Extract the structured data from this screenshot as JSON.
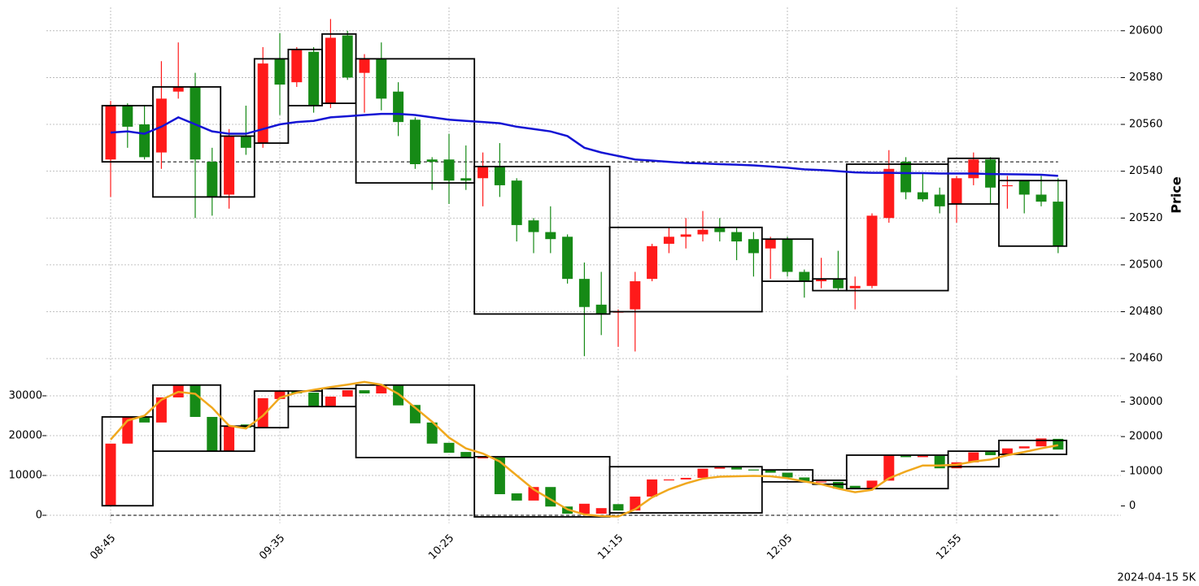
{
  "chart_data": [
    {
      "type": "candlestick",
      "y_label": "Price",
      "categories": [
        "08:45",
        null,
        null,
        null,
        null,
        null,
        null,
        null,
        null,
        null,
        "09:35",
        null,
        null,
        null,
        null,
        null,
        null,
        null,
        null,
        null,
        "10:25",
        null,
        null,
        null,
        null,
        null,
        null,
        null,
        null,
        null,
        "11:15",
        null,
        null,
        null,
        null,
        null,
        null,
        null,
        null,
        null,
        "12:05",
        null,
        null,
        null,
        null,
        null,
        null,
        null,
        null,
        null,
        "12:55",
        null,
        null,
        null,
        null,
        null,
        null
      ],
      "open": [
        20545,
        20568,
        20560,
        20548,
        20574,
        20576,
        20544,
        20530,
        20555,
        20552,
        20588,
        20578,
        20591,
        20569,
        20598,
        20582,
        20588,
        20574,
        20562,
        20545,
        20545,
        20537,
        20537,
        20542,
        20536,
        20519,
        20514,
        20512,
        20494,
        20483,
        20480,
        20481,
        20494,
        20509,
        20512,
        20513,
        20516,
        20514,
        20511,
        20507,
        20511,
        20497,
        20493,
        20494,
        20490,
        20491,
        20520,
        20544,
        20531,
        20530,
        20526,
        20537,
        20545,
        20534,
        20536,
        20530,
        20527
      ],
      "high": [
        20570,
        20569,
        20568,
        20587,
        20595,
        20582,
        20550,
        20558,
        20568,
        20593,
        20599,
        20593,
        20593,
        20605,
        20600,
        20590,
        20595,
        20578,
        20563,
        20546,
        20556,
        20551,
        20548,
        20552,
        20537,
        20520,
        20525,
        20513,
        20501,
        20497,
        20481,
        20497,
        20509,
        20516,
        20520,
        20523,
        20520,
        20516,
        20514,
        20512,
        20512,
        20498,
        20503,
        20506,
        20495,
        20522,
        20549,
        20546,
        20539,
        20533,
        20538,
        20548,
        20546,
        20538,
        20536,
        20538,
        20537
      ],
      "low": [
        20529,
        20550,
        20545,
        20541,
        20571,
        20520,
        20521,
        20524,
        20547,
        20550,
        20564,
        20576,
        20565,
        20567,
        20579,
        20565,
        20566,
        20555,
        20541,
        20532,
        20526,
        20532,
        20525,
        20529,
        20510,
        20505,
        20505,
        20492,
        20461,
        20470,
        20465,
        20463,
        20493,
        20505,
        20507,
        20510,
        20510,
        20502,
        20495,
        20494,
        20495,
        20486,
        20490,
        20489,
        20481,
        20490,
        20518,
        20528,
        20527,
        20522,
        20518,
        20534,
        20526,
        20524,
        20522,
        20525,
        20505
      ],
      "close": [
        20568,
        20559,
        20546,
        20571,
        20576,
        20545,
        20529,
        20555,
        20550,
        20586,
        20577,
        20592,
        20568,
        20597,
        20580,
        20588,
        20571,
        20561,
        20543,
        20544,
        20536,
        20536,
        20542,
        20534,
        20517,
        20514,
        20511,
        20494,
        20482,
        20479,
        20480,
        20493,
        20508,
        20512,
        20513,
        20515,
        20514,
        20510,
        20505,
        20511,
        20497,
        20493,
        20494,
        20490,
        20491,
        20521,
        20541,
        20531,
        20528,
        20525,
        20537,
        20545,
        20533,
        20534,
        20530,
        20527,
        20508
      ],
      "up_color": "#ff1a1a",
      "down_color": "#168a16",
      "line": {
        "color": "#1414d4",
        "values": [
          20556.5,
          20557,
          20556,
          20559,
          20563,
          20560,
          20557,
          20556,
          20556,
          20558,
          20560,
          20561,
          20561.5,
          20563,
          20563.5,
          20564,
          20564.5,
          20564.5,
          20564,
          20563,
          20562,
          20561.5,
          20561,
          20560.5,
          20559,
          20558,
          20557,
          20555,
          20550,
          20548,
          20546.5,
          20545,
          20544.5,
          20544,
          20543.5,
          20543.3,
          20543,
          20542.8,
          20542.5,
          20542,
          20541.5,
          20540.8,
          20540.5,
          20540,
          20539.5,
          20539.3,
          20539.3,
          20539.2,
          20539.2,
          20539,
          20539,
          20539,
          20538.8,
          20538.7,
          20538.6,
          20538.5,
          20538
        ]
      },
      "hline": 20544,
      "boxes": [
        {
          "start": 0,
          "end": 2,
          "high": 20568,
          "low": 20544
        },
        {
          "start": 3,
          "end": 6,
          "high": 20576,
          "low": 20529
        },
        {
          "start": 7,
          "end": 8,
          "high": 20555,
          "low": 20529
        },
        {
          "start": 9,
          "end": 10,
          "high": 20588,
          "low": 20552
        },
        {
          "start": 11,
          "end": 12,
          "high": 20592,
          "low": 20568
        },
        {
          "start": 13,
          "end": 14,
          "high": 20598.6,
          "low": 20569
        },
        {
          "start": 15,
          "end": 21,
          "high": 20588,
          "low": 20535
        },
        {
          "start": 22,
          "end": 29,
          "high": 20542,
          "low": 20479
        },
        {
          "start": 30,
          "end": 38,
          "high": 20516,
          "low": 20480
        },
        {
          "start": 39,
          "end": 41,
          "high": 20511,
          "low": 20493
        },
        {
          "start": 42,
          "end": 43,
          "high": 20494,
          "low": 20489
        },
        {
          "start": 44,
          "end": 49,
          "high": 20543,
          "low": 20489
        },
        {
          "start": 50,
          "end": 52,
          "high": 20545.5,
          "low": 20526
        },
        {
          "start": 53,
          "end": 56,
          "high": 20536,
          "low": 20508
        }
      ],
      "ylim": [
        20455,
        20610
      ],
      "yticks": [
        20460,
        20480,
        20500,
        20520,
        20540,
        20560,
        20580,
        20600
      ],
      "grid": true
    },
    {
      "type": "candlestick",
      "footer": "2024-04-15 5K",
      "open": [
        2400,
        18000,
        24700,
        23300,
        29600,
        32800,
        24700,
        16100,
        22800,
        22000,
        29200,
        31200,
        30800,
        27300,
        29800,
        31400,
        30600,
        32700,
        27700,
        23300,
        18200,
        15900,
        14300,
        14500,
        5500,
        3700,
        7100,
        2200,
        400,
        400,
        2800,
        1200,
        4700,
        8800,
        9000,
        9400,
        11700,
        12100,
        11500,
        11300,
        10700,
        9500,
        8300,
        8400,
        7400,
        6600,
        8700,
        15000,
        14600,
        14900,
        11800,
        13300,
        15900,
        15200,
        16800,
        17300,
        19200
      ],
      "close": [
        18000,
        24700,
        23300,
        29600,
        32700,
        24700,
        16100,
        22400,
        22000,
        29400,
        31200,
        30600,
        27300,
        29800,
        31400,
        30600,
        32700,
        27600,
        23100,
        18000,
        15700,
        14500,
        14700,
        5300,
        3700,
        7100,
        2200,
        400,
        2900,
        1800,
        1200,
        4700,
        9000,
        9000,
        9400,
        11700,
        12100,
        11500,
        11300,
        10700,
        9500,
        8400,
        8500,
        6700,
        6600,
        8700,
        15000,
        14600,
        14900,
        11800,
        13300,
        15800,
        15100,
        16800,
        17300,
        19300,
        16500
      ],
      "up_color": "#ff1a1a",
      "down_color": "#168a16",
      "line": {
        "color": "#f0a81e",
        "values": [
          19000,
          23800,
          25000,
          29000,
          31000,
          30500,
          27000,
          22500,
          21800,
          25000,
          29500,
          30800,
          31500,
          32200,
          32800,
          33500,
          32800,
          30500,
          27000,
          23500,
          19500,
          16800,
          15500,
          13500,
          10000,
          6500,
          4000,
          1500,
          200,
          -200,
          -300,
          1500,
          4500,
          6500,
          8000,
          9200,
          9700,
          9800,
          9900,
          9800,
          9300,
          8500,
          7800,
          6700,
          5800,
          6400,
          9300,
          11000,
          12500,
          12500,
          12700,
          13500,
          14000,
          15100,
          15900,
          16800,
          17600
        ]
      },
      "hline": 0,
      "boxes": [
        {
          "start": 0,
          "end": 2,
          "high": 24700,
          "low": 2400
        },
        {
          "start": 3,
          "end": 6,
          "high": 32700,
          "low": 16100
        },
        {
          "start": 7,
          "end": 8,
          "high": 22400,
          "low": 16100
        },
        {
          "start": 9,
          "end": 10,
          "high": 31200,
          "low": 22000
        },
        {
          "start": 11,
          "end": 12,
          "high": 31200,
          "low": 27300
        },
        {
          "start": 13,
          "end": 14,
          "high": 31800,
          "low": 27300
        },
        {
          "start": 15,
          "end": 21,
          "high": 32700,
          "low": 14500
        },
        {
          "start": 22,
          "end": 29,
          "high": 14700,
          "low": -400
        },
        {
          "start": 30,
          "end": 38,
          "high": 12200,
          "low": 600
        },
        {
          "start": 39,
          "end": 41,
          "high": 11400,
          "low": 8400
        },
        {
          "start": 42,
          "end": 43,
          "high": 8800,
          "low": 7800
        },
        {
          "start": 44,
          "end": 49,
          "high": 15100,
          "low": 6700
        },
        {
          "start": 50,
          "end": 52,
          "high": 16100,
          "low": 12200
        },
        {
          "start": 53,
          "end": 56,
          "high": 18800,
          "low": 15300
        }
      ],
      "ylim": [
        -2000,
        35000
      ],
      "yticks": [
        0,
        10000,
        20000,
        30000
      ],
      "y2lim": [
        -5000,
        37500
      ],
      "y2ticks": [
        0,
        10000,
        20000,
        30000
      ],
      "grid": true
    }
  ]
}
